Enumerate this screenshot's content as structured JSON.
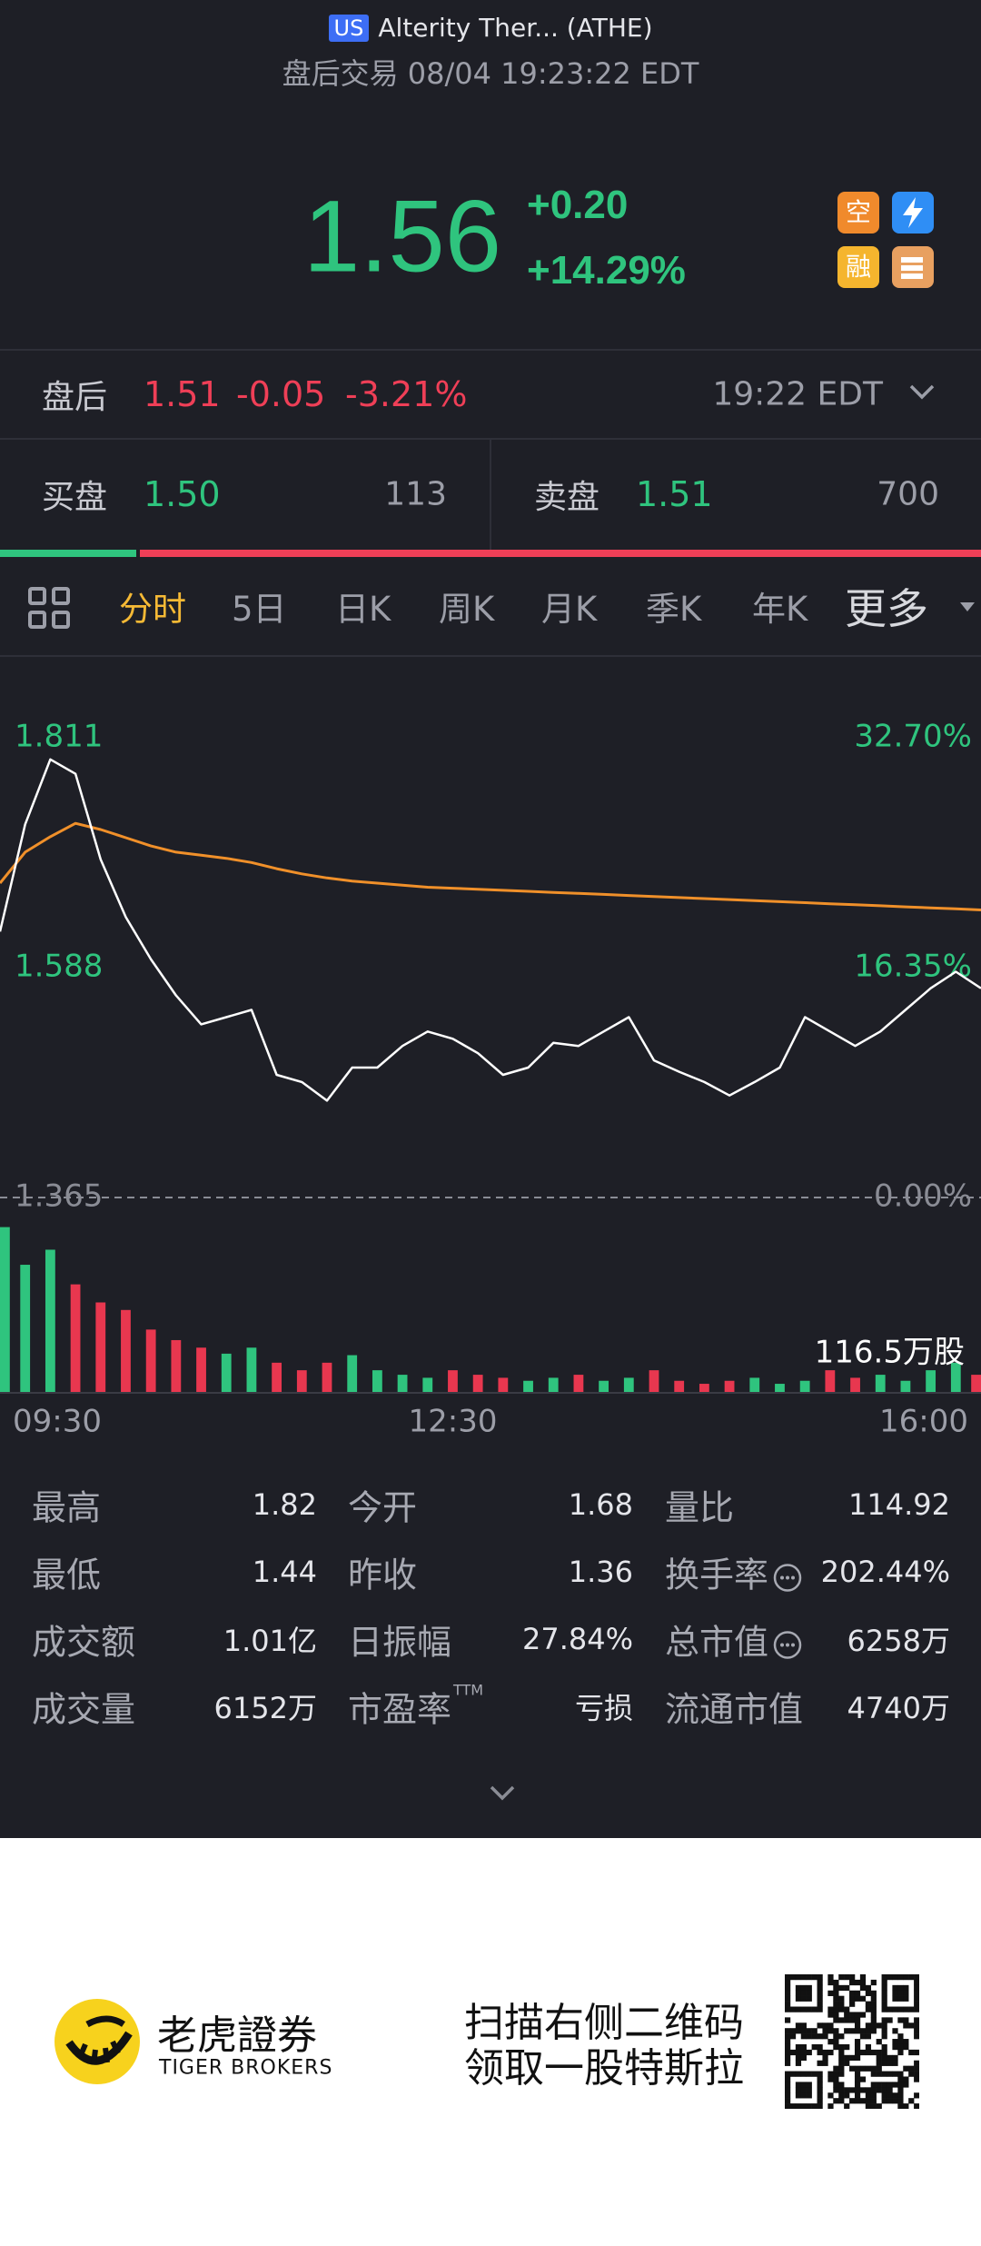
{
  "header": {
    "market": "US",
    "name": "Alterity Ther... (ATHE)",
    "status": "盘后交易 08/04 19:23:22 EDT"
  },
  "quote": {
    "price": "1.56",
    "change": "+0.20",
    "change_pct": "+14.29%",
    "badges": [
      "空",
      "融"
    ]
  },
  "after_hours": {
    "label": "盘后",
    "price": "1.51",
    "change": "-0.05",
    "change_pct": "-3.21%",
    "time": "19:22 EDT"
  },
  "order_book": {
    "bid_label": "买盘",
    "bid_price": "1.50",
    "bid_size": 113,
    "ask_label": "卖盘",
    "ask_price": "1.51",
    "ask_size": 700
  },
  "tabs": [
    "分时",
    "5日",
    "日K",
    "周K",
    "月K",
    "季K",
    "年K",
    "更多"
  ],
  "active_tab": 0,
  "chart_data": {
    "type": "line",
    "categories": [
      "09:30",
      null,
      null,
      null,
      null,
      null,
      null,
      null,
      null,
      null,
      null,
      null,
      null,
      null,
      null,
      null,
      null,
      null,
      "12:30",
      null,
      null,
      null,
      null,
      null,
      null,
      null,
      null,
      null,
      null,
      null,
      null,
      null,
      null,
      null,
      null,
      null,
      null,
      null,
      null,
      "16:00"
    ],
    "series": [
      {
        "color": "#ffffff",
        "values": [
          1.623,
          1.727,
          1.79,
          1.776,
          1.693,
          1.637,
          1.596,
          1.561,
          1.533,
          1.54,
          1.547,
          1.484,
          1.477,
          1.459,
          1.491,
          1.491,
          1.512,
          1.526,
          1.519,
          1.505,
          1.484,
          1.491,
          1.515,
          1.512,
          1.526,
          1.54,
          1.498,
          1.487,
          1.477,
          1.464,
          1.477,
          1.491,
          1.54,
          1.526,
          1.512,
          1.526,
          1.547,
          1.568,
          1.584,
          1.568
        ]
      },
      {
        "color": "#f0902a",
        "values": [
          1.67,
          1.7,
          1.715,
          1.728,
          1.722,
          1.714,
          1.706,
          1.7,
          1.697,
          1.694,
          1.69,
          1.684,
          1.679,
          1.675,
          1.672,
          1.67,
          1.668,
          1.666,
          1.665,
          1.664,
          1.663,
          1.662,
          1.661,
          1.66,
          1.659,
          1.658,
          1.657,
          1.656,
          1.655,
          1.654,
          1.653,
          1.652,
          1.651,
          1.65,
          1.649,
          1.648,
          1.647,
          1.646,
          1.645,
          1.644
        ]
      }
    ],
    "ylim": [
      1.365,
      1.811
    ],
    "yticks": [
      1.365,
      1.588,
      1.811
    ],
    "y2lim": [
      0,
      32.7
    ],
    "y2ticks": [
      {
        "value": 0,
        "label": "0.00%"
      },
      {
        "value": 16.35,
        "label": "16.35%"
      },
      {
        "value": 32.7,
        "label": "32.70%"
      }
    ],
    "volume": {
      "values": [
        110,
        85,
        95,
        72,
        60,
        55,
        42,
        35,
        30,
        26,
        30,
        20,
        15,
        20,
        25,
        15,
        12,
        10,
        15,
        12,
        10,
        8,
        10,
        12,
        8,
        10,
        15,
        8,
        6,
        8,
        10,
        6,
        8,
        15,
        10,
        12,
        8,
        15,
        20,
        12
      ],
      "vlim": [
        0,
        120
      ],
      "label": "116.5万股"
    },
    "up_color": "#2fc47e",
    "down_color": "#e8374f"
  },
  "stats": [
    {
      "label": "最高",
      "value": "1.82"
    },
    {
      "label": "今开",
      "value": "1.68"
    },
    {
      "label": "量比",
      "value": "114.92"
    },
    {
      "label": "最低",
      "value": "1.44"
    },
    {
      "label": "昨收",
      "value": "1.36"
    },
    {
      "label": "换手率",
      "value": "202.44%",
      "info": true
    },
    {
      "label": "成交额",
      "value": "1.01亿"
    },
    {
      "label": "日振幅",
      "value": "27.84%"
    },
    {
      "label": "总市值",
      "value": "6258万",
      "info": true
    },
    {
      "label": "成交量",
      "value": "6152万"
    },
    {
      "label": "市盈率",
      "sup": "TTM",
      "value": "亏损"
    },
    {
      "label": "流通市值",
      "value": "4740万"
    }
  ],
  "footer": {
    "brand": "老虎證券",
    "brand_en": "TIGER BROKERS",
    "promo": [
      "扫描右侧二维码",
      "领取一股特斯拉"
    ]
  }
}
